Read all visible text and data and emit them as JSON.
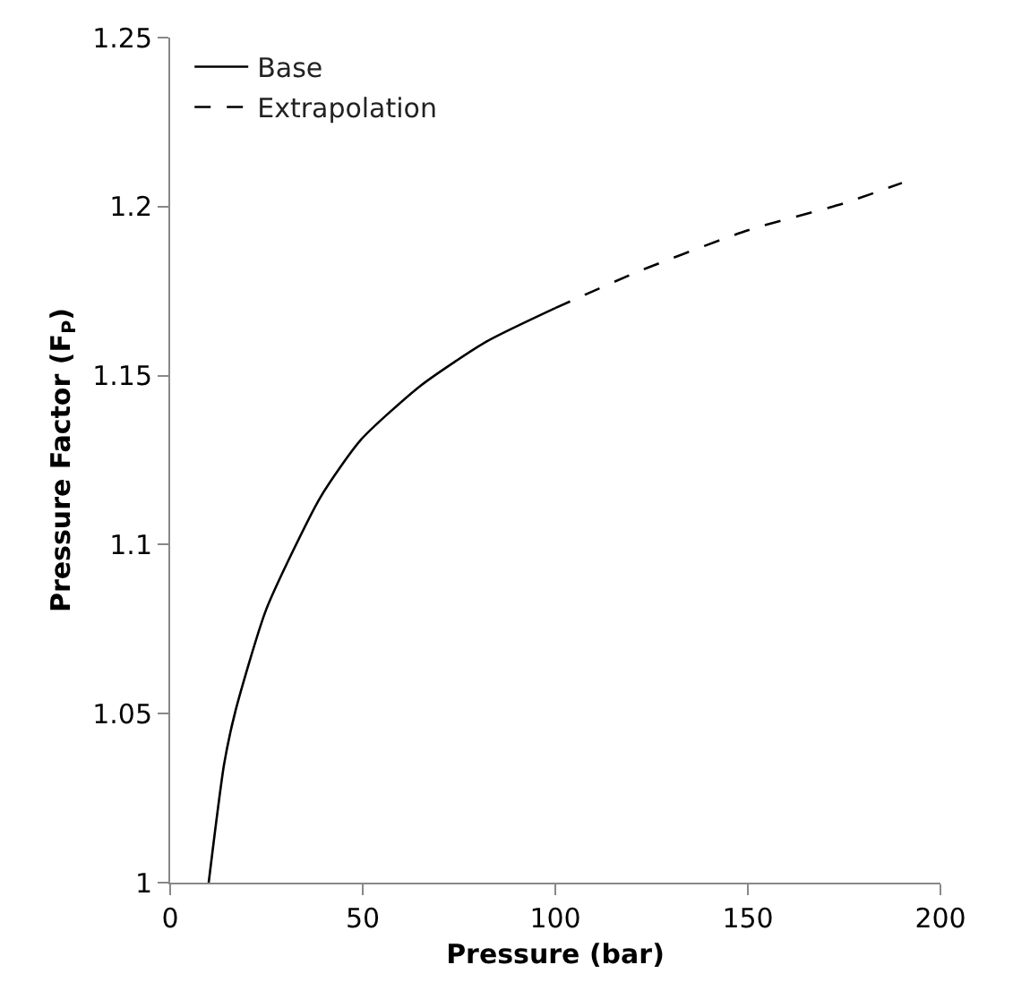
{
  "chart_data": {
    "type": "line",
    "xlabel": "Pressure (bar)",
    "ylabel": "Pressure Factor (F$_{P}$)",
    "xlim": [
      0,
      200
    ],
    "xticks": [
      0,
      50,
      100,
      150,
      200
    ],
    "ylim": [
      1,
      1.25
    ],
    "yticks": [
      1,
      {
        "value": 1.05,
        "label": "1.05"
      },
      {
        "value": 1.1,
        "label": "1.1"
      },
      {
        "value": 1.15,
        "label": "1.15"
      },
      {
        "value": 1.2,
        "label": "1.2"
      },
      {
        "value": 1.25,
        "label": "1.25"
      }
    ],
    "grid": false,
    "legend": "top left",
    "marker": "none",
    "series": [
      {
        "name": "Base",
        "color": "#000000",
        "line_style": "solid",
        "x": [
          10,
          14,
          17,
          25,
          39,
          49.5,
          65,
          82,
          100
        ],
        "values": [
          1.0,
          1.035,
          1.051,
          1.081,
          1.114,
          1.131,
          1.147,
          1.16,
          1.17
        ]
      },
      {
        "name": "Extrapolation",
        "color": "#000000",
        "line_style": "dashed",
        "x": [
          100,
          122,
          150,
          175,
          190
        ],
        "values": [
          1.17,
          1.181,
          1.193,
          1.201,
          1.207
        ]
      }
    ]
  }
}
